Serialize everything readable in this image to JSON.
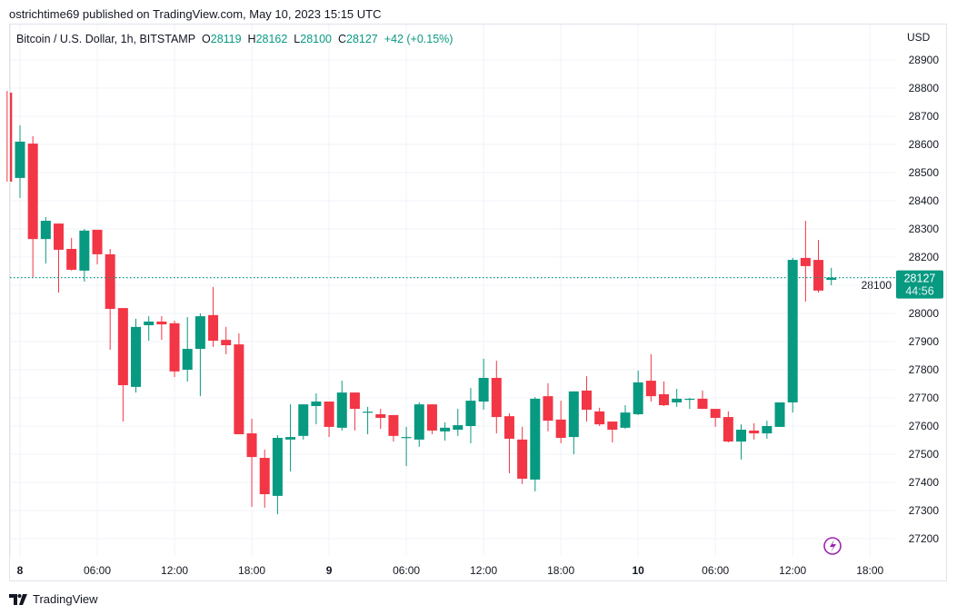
{
  "header": {
    "published": "ostrichtime69 published on TradingView.com, May 10, 2023 15:15 UTC"
  },
  "legend": {
    "symbol": "Bitcoin / U.S. Dollar, 1h, BITSTAMP",
    "open_label": "O",
    "open": "28119",
    "high_label": "H",
    "high": "28162",
    "low_label": "L",
    "low": "28100",
    "close_label": "C",
    "close": "28127",
    "change": "+42 (+0.15%)"
  },
  "price_axis": {
    "currency": "USD"
  },
  "last_price": {
    "price": "28127",
    "countdown": "44:56"
  },
  "footer": {
    "brand": "TradingView",
    "logo_icon": "tradingview-logo-icon"
  },
  "icons": {
    "lightning": "lightning-icon"
  },
  "colors": {
    "up": "#089981",
    "down": "#f23645",
    "grid": "#f0f3fa",
    "marker": "#9c27b0"
  },
  "chart_data": {
    "type": "candlestick",
    "title": "Bitcoin / U.S. Dollar, 1h, BITSTAMP",
    "ylim": [
      27150,
      28950
    ],
    "grid": true,
    "y_ticks": [
      27200,
      27300,
      27400,
      27500,
      27600,
      27700,
      27800,
      27900,
      28000,
      28100,
      28200,
      28300,
      28400,
      28500,
      28600,
      28700,
      28800,
      28900
    ],
    "x_ticks": [
      {
        "label": "8",
        "time": "2023-05-08T00:00"
      },
      {
        "label": "06:00",
        "time": "2023-05-08T06:00"
      },
      {
        "label": "12:00",
        "time": "2023-05-08T12:00"
      },
      {
        "label": "18:00",
        "time": "2023-05-08T18:00"
      },
      {
        "label": "9",
        "time": "2023-05-09T00:00"
      },
      {
        "label": "06:00",
        "time": "2023-05-09T06:00"
      },
      {
        "label": "12:00",
        "time": "2023-05-09T12:00"
      },
      {
        "label": "18:00",
        "time": "2023-05-09T18:00"
      },
      {
        "label": "10",
        "time": "2023-05-10T00:00"
      },
      {
        "label": "06:00",
        "time": "2023-05-10T06:00"
      },
      {
        "label": "12:00",
        "time": "2023-05-10T12:00"
      },
      {
        "label": "18:00",
        "time": "2023-05-10T18:00"
      }
    ],
    "columns": [
      "time",
      "open",
      "high",
      "low",
      "close"
    ],
    "candles": [
      [
        "2023-05-07T23:00",
        28784,
        28790,
        28468,
        28468
      ],
      [
        "2023-05-08T00:00",
        28481,
        28668,
        28410,
        28610
      ],
      [
        "2023-05-08T01:00",
        28603,
        28629,
        28126,
        28264
      ],
      [
        "2023-05-08T02:00",
        28264,
        28342,
        28177,
        28329
      ],
      [
        "2023-05-08T03:00",
        28319,
        28319,
        28074,
        28226
      ],
      [
        "2023-05-08T04:00",
        28229,
        28268,
        28152,
        28155
      ],
      [
        "2023-05-08T05:00",
        28152,
        28300,
        28113,
        28294
      ],
      [
        "2023-05-08T06:00",
        28297,
        28297,
        28174,
        28210
      ],
      [
        "2023-05-08T07:00",
        28210,
        28229,
        27871,
        28016
      ],
      [
        "2023-05-08T08:00",
        28019,
        28019,
        27616,
        27745
      ],
      [
        "2023-05-08T09:00",
        27739,
        27981,
        27719,
        27952
      ],
      [
        "2023-05-08T10:00",
        27958,
        27990,
        27903,
        27971
      ],
      [
        "2023-05-08T11:00",
        27971,
        27990,
        27906,
        27961
      ],
      [
        "2023-05-08T12:00",
        27965,
        27974,
        27774,
        27794
      ],
      [
        "2023-05-08T13:00",
        27800,
        27987,
        27758,
        27874
      ],
      [
        "2023-05-08T14:00",
        27874,
        28000,
        27706,
        27990
      ],
      [
        "2023-05-08T15:00",
        27994,
        28094,
        27881,
        27903
      ],
      [
        "2023-05-08T16:00",
        27906,
        27952,
        27855,
        27887
      ],
      [
        "2023-05-08T17:00",
        27890,
        27929,
        27571,
        27571
      ],
      [
        "2023-05-08T18:00",
        27574,
        27626,
        27313,
        27490
      ],
      [
        "2023-05-08T19:00",
        27487,
        27516,
        27310,
        27358
      ],
      [
        "2023-05-08T20:00",
        27352,
        27568,
        27287,
        27558
      ],
      [
        "2023-05-08T21:00",
        27552,
        27677,
        27439,
        27561
      ],
      [
        "2023-05-08T22:00",
        27565,
        27677,
        27552,
        27677
      ],
      [
        "2023-05-08T23:00",
        27671,
        27716,
        27606,
        27687
      ],
      [
        "2023-05-09T00:00",
        27687,
        27687,
        27561,
        27597
      ],
      [
        "2023-05-09T01:00",
        27594,
        27761,
        27584,
        27719
      ],
      [
        "2023-05-09T02:00",
        27719,
        27719,
        27584,
        27661
      ],
      [
        "2023-05-09T03:00",
        27648,
        27668,
        27571,
        27651
      ],
      [
        "2023-05-09T04:00",
        27642,
        27661,
        27590,
        27629
      ],
      [
        "2023-05-09T05:00",
        27639,
        27639,
        27545,
        27565
      ],
      [
        "2023-05-09T06:00",
        27558,
        27597,
        27458,
        27561
      ],
      [
        "2023-05-09T07:00",
        27552,
        27684,
        27526,
        27677
      ],
      [
        "2023-05-09T08:00",
        27677,
        27677,
        27571,
        27584
      ],
      [
        "2023-05-09T09:00",
        27581,
        27613,
        27548,
        27594
      ],
      [
        "2023-05-09T10:00",
        27587,
        27661,
        27565,
        27603
      ],
      [
        "2023-05-09T11:00",
        27600,
        27735,
        27539,
        27690
      ],
      [
        "2023-05-09T12:00",
        27687,
        27839,
        27658,
        27771
      ],
      [
        "2023-05-09T13:00",
        27771,
        27832,
        27574,
        27632
      ],
      [
        "2023-05-09T14:00",
        27635,
        27645,
        27432,
        27555
      ],
      [
        "2023-05-09T15:00",
        27552,
        27597,
        27394,
        27413
      ],
      [
        "2023-05-09T16:00",
        27410,
        27703,
        27368,
        27697
      ],
      [
        "2023-05-09T17:00",
        27706,
        27752,
        27581,
        27619
      ],
      [
        "2023-05-09T18:00",
        27623,
        27690,
        27539,
        27558
      ],
      [
        "2023-05-09T19:00",
        27561,
        27723,
        27500,
        27723
      ],
      [
        "2023-05-09T20:00",
        27726,
        27777,
        27616,
        27658
      ],
      [
        "2023-05-09T21:00",
        27652,
        27665,
        27600,
        27606
      ],
      [
        "2023-05-09T22:00",
        27616,
        27616,
        27542,
        27587
      ],
      [
        "2023-05-09T23:00",
        27594,
        27674,
        27590,
        27648
      ],
      [
        "2023-05-10T00:00",
        27642,
        27797,
        27639,
        27755
      ],
      [
        "2023-05-10T01:00",
        27761,
        27855,
        27687,
        27706
      ],
      [
        "2023-05-10T02:00",
        27713,
        27758,
        27671,
        27674
      ],
      [
        "2023-05-10T03:00",
        27684,
        27732,
        27668,
        27697
      ],
      [
        "2023-05-10T04:00",
        27696,
        27700,
        27661,
        27697
      ],
      [
        "2023-05-10T05:00",
        27697,
        27726,
        27661,
        27661
      ],
      [
        "2023-05-10T06:00",
        27661,
        27661,
        27597,
        27629
      ],
      [
        "2023-05-10T07:00",
        27632,
        27652,
        27542,
        27545
      ],
      [
        "2023-05-10T08:00",
        27545,
        27606,
        27481,
        27587
      ],
      [
        "2023-05-10T09:00",
        27584,
        27610,
        27552,
        27574
      ],
      [
        "2023-05-10T10:00",
        27574,
        27619,
        27555,
        27600
      ],
      [
        "2023-05-10T11:00",
        27597,
        27684,
        27597,
        27684
      ],
      [
        "2023-05-10T12:00",
        27684,
        28197,
        27648,
        28190
      ],
      [
        "2023-05-10T13:00",
        28197,
        28329,
        28042,
        28168
      ],
      [
        "2023-05-10T14:00",
        28190,
        28261,
        28074,
        28081
      ],
      [
        "2023-05-10T15:00",
        28119,
        28162,
        28100,
        28127
      ]
    ]
  }
}
